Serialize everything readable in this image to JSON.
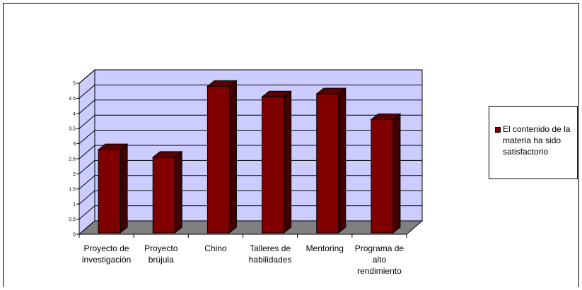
{
  "chart_data": {
    "type": "bar",
    "categories": [
      [
        "Proyecto de",
        "investigación"
      ],
      [
        "Proyecto",
        "brújula"
      ],
      [
        "Chino"
      ],
      [
        "Talleres de",
        "habilidades"
      ],
      [
        "Mentoring"
      ],
      [
        "Programa de",
        "alto",
        "rendimiento"
      ]
    ],
    "series": [
      {
        "name": "El contenido de la materia ha sido satisfactorio",
        "values": [
          2.8,
          2.55,
          4.9,
          4.55,
          4.65,
          3.8
        ],
        "color": "#800000"
      }
    ],
    "yticks": [
      "0",
      "0.5",
      "1",
      "1.5",
      "2",
      "2.5",
      "3",
      "3.5",
      "4",
      "4.5",
      "5"
    ],
    "ylim": [
      0,
      5
    ],
    "grid": true,
    "legend_position": "right",
    "wall_color": "#CCCCFF",
    "floor_color": "#808080"
  }
}
